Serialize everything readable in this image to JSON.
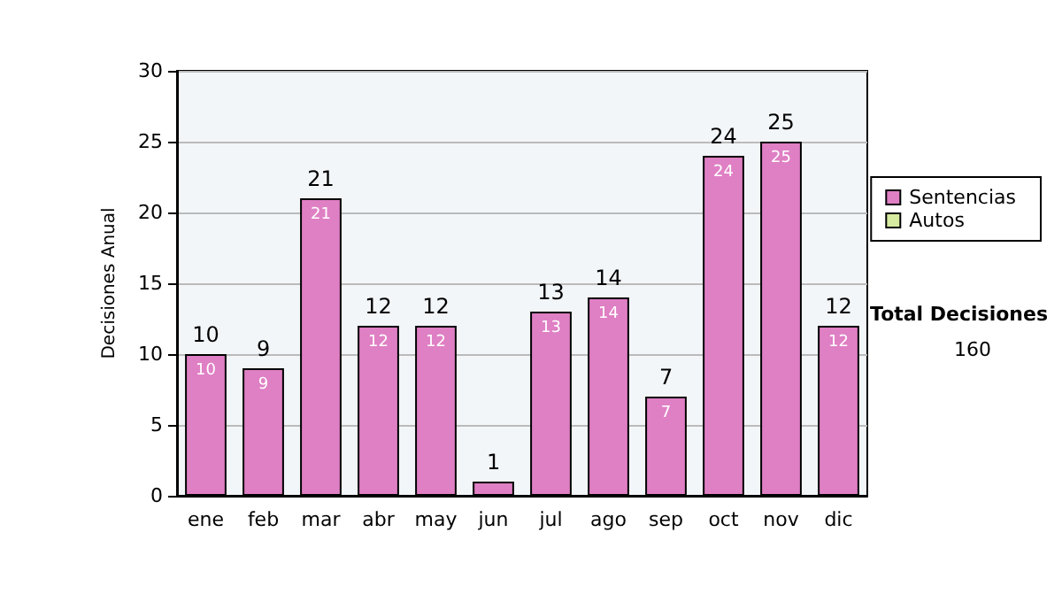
{
  "chart_data": {
    "type": "bar",
    "stacked": true,
    "ylabel": "Decisiones Anual",
    "categories": [
      "ene",
      "feb",
      "mar",
      "abr",
      "may",
      "jun",
      "jul",
      "ago",
      "sep",
      "oct",
      "nov",
      "dic"
    ],
    "series": [
      {
        "name": "Sentencias",
        "color": "#df7fc4",
        "values": [
          10,
          9,
          21,
          12,
          12,
          1,
          13,
          14,
          7,
          24,
          25,
          12
        ],
        "value_labels": [
          "10",
          "9",
          "21",
          "12",
          "12",
          null,
          "13",
          "14",
          "7",
          "24",
          "25",
          "12"
        ]
      },
      {
        "name": "Autos",
        "color": "#d6eaa0",
        "values": [
          0,
          0,
          0,
          0,
          0,
          0,
          0,
          0,
          0,
          0,
          0,
          0
        ]
      }
    ],
    "totals": [
      "10",
      "9",
      "21",
      "12",
      "12",
      "1",
      "13",
      "14",
      "7",
      "24",
      "25",
      "12"
    ],
    "ylim": [
      0,
      30
    ],
    "yticks": [
      0,
      5,
      10,
      15,
      20,
      25,
      30
    ],
    "grid": "y",
    "legend": "right",
    "annotations": [
      "Total Decisiones",
      "160"
    ]
  }
}
